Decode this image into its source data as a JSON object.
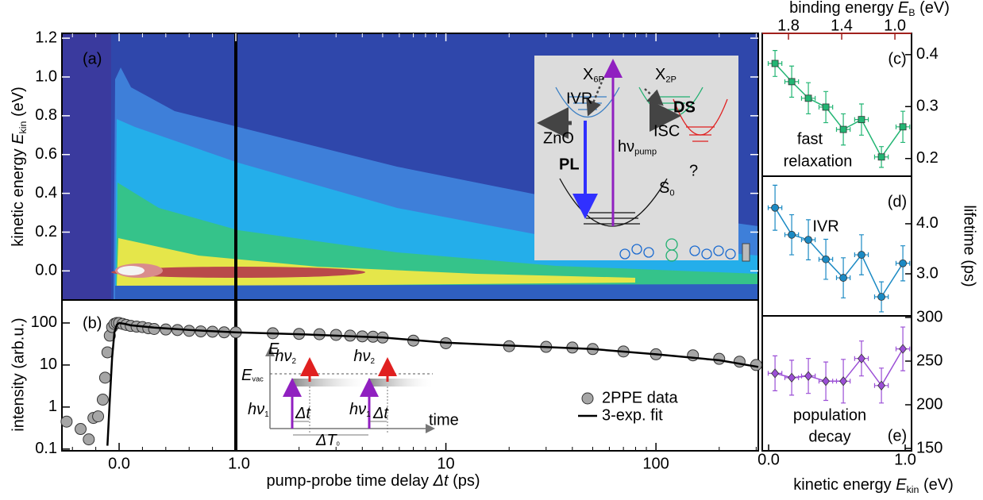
{
  "chart_data": [
    {
      "type": "heatmap",
      "panel_label": "(a)",
      "ylabel": {
        "text": "kinetic energy ",
        "symbol": "E",
        "sub": "kin",
        "unit": " (eV)"
      },
      "ylim": [
        -0.15,
        1.225
      ],
      "yticks": [
        {
          "value": 0,
          "label": "0.0"
        },
        0.2,
        0.4,
        0.6,
        0.8,
        {
          "value": 1,
          "label": "1.0"
        },
        1.2
      ],
      "inset": {
        "x6p": {
          "main": "X",
          "sub": "6P"
        },
        "x2p": {
          "main": "X",
          "sub": "2P"
        },
        "ivr": "IVR",
        "zno": "ZnO",
        "pl": "PL",
        "pump": {
          "main": "hν",
          "sub": "pump"
        },
        "ds": "DS",
        "isc": "ISC",
        "question": "?",
        "s0": {
          "main": "S",
          "sub": "0"
        }
      }
    },
    {
      "type": "scatter",
      "panel_label": "(b)",
      "yscale": "log",
      "ylabel": "intensity (arb.u.)",
      "xlabel": {
        "text": "pump-probe time delay ",
        "symbol": "Δt",
        "unit": " (ps)"
      },
      "ylim": [
        0.091,
        352
      ],
      "yticks": [
        0.1,
        1,
        10,
        100
      ],
      "x_segments": [
        {
          "scale": "linear",
          "xlim": [
            -0.49,
            1.0
          ],
          "xticks": [
            {
              "value": 0,
              "label": "0.0"
            }
          ],
          "xminor": [
            -0.4,
            -0.2,
            0.2,
            0.4,
            0.6,
            0.8
          ]
        },
        {
          "scale": "log",
          "xlim": [
            1.0,
            307
          ],
          "xticks": [
            {
              "value": 1,
              "label": "1.0"
            },
            10,
            100
          ],
          "xminor": [
            2,
            3,
            4,
            5,
            6,
            7,
            8,
            9,
            20,
            30,
            40,
            50,
            60,
            70,
            80,
            90,
            200,
            300
          ]
        }
      ],
      "legend": "lower right",
      "series": [
        {
          "name": "2PPE data",
          "color": "#a6a6a6",
          "x": [
            -0.45,
            -0.33,
            -0.26,
            -0.22,
            -0.18,
            -0.14,
            -0.12,
            -0.1,
            -0.08,
            -0.06,
            -0.04,
            -0.02,
            0.0,
            0.03,
            0.06,
            0.1,
            0.15,
            0.2,
            0.25,
            0.3,
            0.4,
            0.5,
            0.6,
            0.7,
            0.8,
            0.9,
            1.0,
            1.5,
            2,
            2.5,
            3,
            3.5,
            4,
            4.5,
            5,
            7,
            10,
            20,
            30,
            40,
            50,
            70,
            100,
            150,
            200,
            250,
            300
          ],
          "values": [
            0.45,
            0.3,
            0.17,
            0.55,
            0.6,
            1.5,
            5,
            20,
            50,
            80,
            95,
            100,
            100,
            95,
            90,
            85,
            82,
            80,
            75,
            72,
            70,
            68,
            65,
            63,
            62,
            60,
            60,
            57,
            55,
            54,
            52,
            50,
            48,
            47,
            45,
            38,
            33,
            28,
            27,
            26,
            24,
            21,
            18,
            17,
            14,
            12,
            10
          ]
        },
        {
          "name": "3-exp. fit",
          "color": "#000000",
          "line": true,
          "x": [
            -0.1,
            -0.08,
            -0.06,
            -0.04,
            -0.02,
            0,
            0.05,
            0.1,
            0.3,
            0.6,
            1.0,
            2,
            5,
            10,
            20,
            50,
            100,
            200,
            307
          ],
          "values": [
            0.12,
            1.5,
            15,
            60,
            90,
            100,
            95,
            88,
            78,
            68,
            60,
            54,
            45,
            34,
            29,
            24,
            18,
            13,
            9
          ]
        }
      ],
      "inset": {
        "e": {
          "symbol": "E"
        },
        "evac": {
          "symbol": "E",
          "sub": "vac"
        },
        "hv2a": {
          "symbol": "hν",
          "sub": "2"
        },
        "hv2b": {
          "symbol": "hν",
          "sub": "2"
        },
        "hv1a": {
          "symbol": "hν",
          "sub": "1"
        },
        "hv1b": {
          "symbol": "hν",
          "sub": "1"
        },
        "dta": {
          "symbol": "Δt"
        },
        "dtb": {
          "symbol": "Δt"
        },
        "dT0": {
          "symbol": "ΔT",
          "sub": "0"
        },
        "time": "time"
      }
    },
    {
      "type": "errorbar",
      "panel_label": "(c)",
      "annotation": [
        "fast",
        "relaxation"
      ],
      "x2label": {
        "text": "binding energy ",
        "symbol": "E",
        "sub": "B",
        "unit": " (eV)"
      },
      "x2lim": [
        1.997,
        0.875
      ],
      "x2ticks": [
        1.8,
        1.4,
        {
          "value": 1,
          "label": "1.0"
        }
      ],
      "xlim": [
        -0.0465,
        1.0465
      ],
      "ylim": [
        0.166,
        0.441
      ],
      "yticks": [
        0.2,
        0.3,
        0.4
      ],
      "series": [
        {
          "color": "#22b573",
          "marker": "square",
          "x": [
            0.047,
            0.169,
            0.291,
            0.419,
            0.547,
            0.68,
            0.826,
            0.983
          ],
          "xerr": 0.05,
          "values": [
            0.383,
            0.348,
            0.316,
            0.299,
            0.256,
            0.275,
            0.203,
            0.261
          ],
          "yerr": [
            0.025,
            0.03,
            0.03,
            0.03,
            0.03,
            0.03,
            0.02,
            0.03
          ]
        }
      ]
    },
    {
      "type": "errorbar",
      "panel_label": "(d)",
      "annotation": [
        "IVR"
      ],
      "ylabel": "lifetime (ps)",
      "xlim": [
        -0.0465,
        1.0465
      ],
      "ylim": [
        2.16,
        4.95
      ],
      "yticks": [
        {
          "value": 3,
          "label": "3.0"
        },
        {
          "value": 4,
          "label": "4.0"
        }
      ],
      "series": [
        {
          "color": "#1b8ac4",
          "marker": "circle",
          "x": [
            0.047,
            0.169,
            0.291,
            0.419,
            0.547,
            0.68,
            0.826,
            0.983
          ],
          "xerr": 0.05,
          "values": [
            4.32,
            3.78,
            3.68,
            3.29,
            2.92,
            3.38,
            2.54,
            3.21
          ],
          "yerr": [
            0.45,
            0.4,
            0.4,
            0.4,
            0.4,
            0.4,
            0.3,
            0.35
          ]
        }
      ]
    },
    {
      "type": "errorbar",
      "panel_label": "(e)",
      "annotation": [
        "population",
        "decay"
      ],
      "xlabel": {
        "text": "kinetic energy ",
        "symbol": "E",
        "sub": "kin",
        "unit": " (eV)"
      },
      "xlim": [
        -0.0465,
        1.0465
      ],
      "xticks": [
        {
          "value": 0,
          "label": "0.0"
        },
        {
          "value": 1,
          "label": "1.0"
        }
      ],
      "ylim": [
        147.3,
        301.8
      ],
      "yticks": [
        150,
        200,
        250,
        300
      ],
      "series": [
        {
          "color": "#9b4fd6",
          "marker": "diamond",
          "x": [
            0.047,
            0.169,
            0.291,
            0.419,
            0.547,
            0.68,
            0.826,
            0.983
          ],
          "xerr": 0.05,
          "values": [
            236,
            231,
            233,
            227,
            227,
            253,
            222,
            264
          ],
          "yerr": [
            20,
            20,
            20,
            22,
            25,
            20,
            20,
            25
          ]
        }
      ]
    }
  ]
}
